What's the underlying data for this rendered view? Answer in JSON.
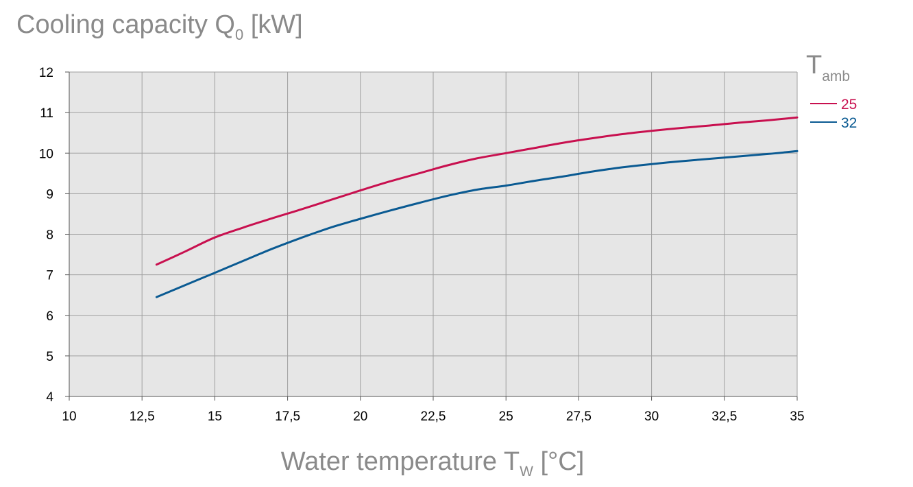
{
  "chart_data": {
    "type": "line",
    "title": {
      "main": "Cooling capacity Q",
      "sub": "0",
      "unit": " [kW]"
    },
    "xlabel": {
      "main": "Water temperature T",
      "sub": "W",
      "unit": " [°C]"
    },
    "legend_title": {
      "main": "T",
      "sub": "amb"
    },
    "xlim": [
      10,
      35
    ],
    "ylim": [
      4,
      12
    ],
    "grid": true,
    "x_ticks": [
      10,
      12.5,
      15,
      17.5,
      20,
      22.5,
      25,
      27.5,
      30,
      32.5,
      35
    ],
    "x_tick_labels": [
      "10",
      "12,5",
      "15",
      "17,5",
      "20",
      "22,5",
      "25",
      "27,5",
      "30",
      "32,5",
      "35"
    ],
    "y_ticks": [
      4,
      5,
      6,
      7,
      8,
      9,
      10,
      11,
      12
    ],
    "y_tick_labels": [
      "4",
      "5",
      "6",
      "7",
      "8",
      "9",
      "10",
      "11",
      "12"
    ],
    "series": [
      {
        "name": "25",
        "color": "#c8104f",
        "x": [
          13,
          14,
          15,
          16,
          17,
          18,
          19,
          20,
          21,
          22,
          23,
          24,
          25,
          26,
          27,
          28,
          29,
          30,
          31,
          32,
          33,
          34,
          35
        ],
        "y": [
          7.25,
          7.58,
          7.92,
          8.17,
          8.4,
          8.62,
          8.85,
          9.08,
          9.3,
          9.5,
          9.7,
          9.87,
          10.0,
          10.13,
          10.26,
          10.37,
          10.47,
          10.55,
          10.62,
          10.68,
          10.75,
          10.81,
          10.88
        ]
      },
      {
        "name": "32",
        "color": "#0a5a92",
        "x": [
          13,
          14,
          15,
          16,
          17,
          18,
          19,
          20,
          21,
          22,
          23,
          24,
          25,
          26,
          27,
          28,
          29,
          30,
          31,
          32,
          33,
          34,
          35
        ],
        "y": [
          6.45,
          6.75,
          7.05,
          7.35,
          7.65,
          7.92,
          8.17,
          8.38,
          8.58,
          8.77,
          8.95,
          9.1,
          9.2,
          9.32,
          9.43,
          9.55,
          9.65,
          9.73,
          9.8,
          9.86,
          9.92,
          9.98,
          10.05
        ]
      }
    ]
  }
}
